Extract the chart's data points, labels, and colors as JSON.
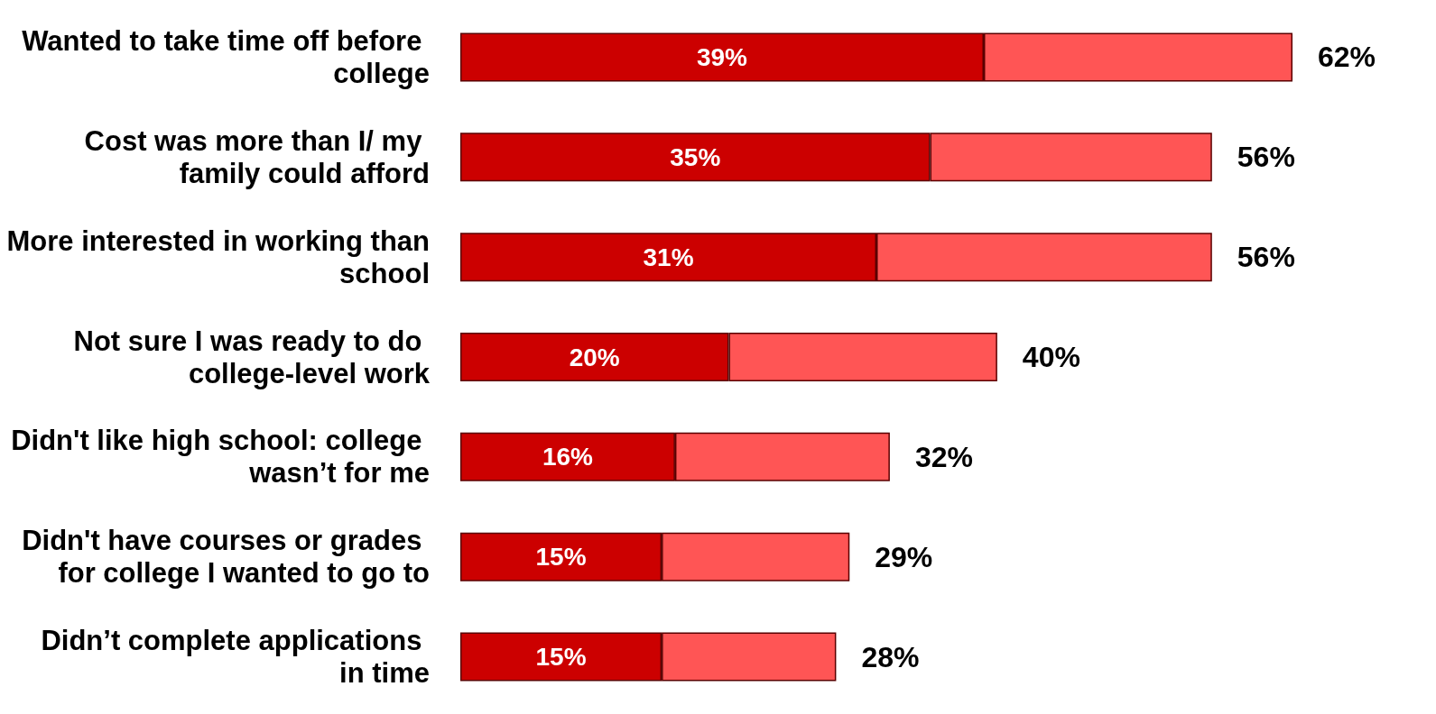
{
  "chart_data": {
    "type": "bar",
    "orientation": "horizontal",
    "stacked": true,
    "categories": [
      "Wanted to take time off before college",
      "Cost was more than I/ my family could afford",
      "More interested in working than school",
      "Not sure I was ready to do college-level work",
      "Didn't like high school: college wasn’t for me",
      "Didn't have courses or grades for college I wanted to go to",
      "Didn’t complete applications in time"
    ],
    "series": [
      {
        "color": "#cc0000",
        "values": [
          39,
          35,
          31,
          20,
          16,
          15,
          15
        ],
        "value_labels": [
          "39%",
          "35%",
          "31%",
          "20%",
          "16%",
          "15%",
          "15%"
        ]
      },
      {
        "color": "#ff5555",
        "values": [
          23,
          21,
          25,
          20,
          16,
          14,
          13
        ]
      }
    ],
    "totals": [
      "62%",
      "56%",
      "56%",
      "40%",
      "32%",
      "29%",
      "28%"
    ]
  }
}
